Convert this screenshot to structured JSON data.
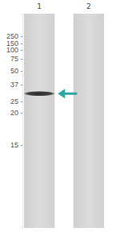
{
  "chart_data": {
    "type": "western_blot",
    "categories": [
      "1",
      "2"
    ],
    "values": [
      30,
      null
    ],
    "color": "#2a2a2a",
    "log": "y",
    "ylim": [
      300,
      12
    ],
    "yticks": [
      250,
      150,
      100,
      75,
      50,
      37,
      25,
      20,
      15
    ],
    "tick_labels": "y"
  }
}
